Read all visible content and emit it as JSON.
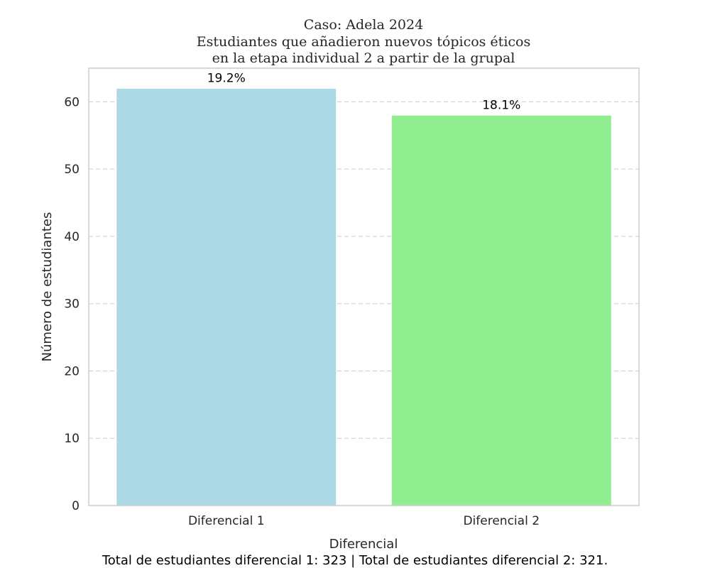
{
  "chart_data": {
    "type": "bar",
    "title_lines": [
      "Caso: Adela 2024",
      "Estudiantes que añadieron nuevos tópicos éticos",
      "en la etapa individual 2 a partir de la grupal"
    ],
    "categories": [
      "Diferencial 1",
      "Diferencial 2"
    ],
    "values": [
      62,
      58
    ],
    "bar_labels": [
      "19.2%",
      "18.1%"
    ],
    "bar_colors": [
      "#add8e6",
      "#90ee90"
    ],
    "xlabel": "Diferencial",
    "ylabel": "Número de estudiantes",
    "ylim": [
      0,
      65
    ],
    "yticks": [
      0,
      10,
      20,
      30,
      40,
      50,
      60
    ],
    "grid": "y-dashed",
    "footnote": "Total de estudiantes diferencial 1: 323 | Total de estudiantes diferencial 2: 321."
  }
}
